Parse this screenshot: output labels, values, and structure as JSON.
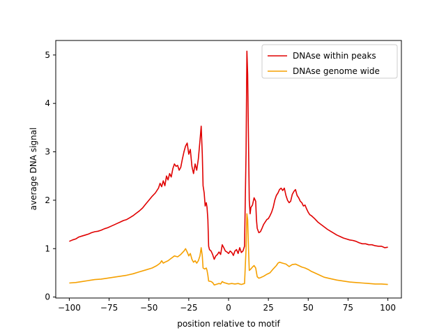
{
  "chart_data": {
    "type": "line",
    "xlabel": "position relative to motif",
    "ylabel": "average DNA signal",
    "xlim": [
      -108.5,
      108.5
    ],
    "ylim": [
      -0.02,
      5.3
    ],
    "xticks": [
      -100,
      -75,
      -50,
      -25,
      0,
      25,
      50,
      75,
      100
    ],
    "xtick_labels": [
      "−100",
      "−75",
      "−50",
      "−25",
      "0",
      "25",
      "50",
      "75",
      "100"
    ],
    "yticks": [
      0,
      1,
      2,
      3,
      4,
      5
    ],
    "ytick_labels": [
      "0",
      "1",
      "2",
      "3",
      "4",
      "5"
    ],
    "grid": false,
    "legend": "top-right",
    "series": [
      {
        "name": "DNAse within peaks",
        "color": "#e00000",
        "points": [
          [
            -100,
            1.15
          ],
          [
            -98,
            1.18
          ],
          [
            -96,
            1.2
          ],
          [
            -94,
            1.24
          ],
          [
            -92,
            1.26
          ],
          [
            -90,
            1.28
          ],
          [
            -88,
            1.3
          ],
          [
            -86,
            1.33
          ],
          [
            -84,
            1.35
          ],
          [
            -82,
            1.36
          ],
          [
            -80,
            1.38
          ],
          [
            -78,
            1.41
          ],
          [
            -76,
            1.43
          ],
          [
            -74,
            1.46
          ],
          [
            -72,
            1.49
          ],
          [
            -70,
            1.52
          ],
          [
            -68,
            1.55
          ],
          [
            -66,
            1.58
          ],
          [
            -64,
            1.6
          ],
          [
            -62,
            1.64
          ],
          [
            -60,
            1.68
          ],
          [
            -58,
            1.73
          ],
          [
            -56,
            1.78
          ],
          [
            -54,
            1.84
          ],
          [
            -52,
            1.92
          ],
          [
            -50,
            2.0
          ],
          [
            -48,
            2.08
          ],
          [
            -46,
            2.15
          ],
          [
            -44,
            2.25
          ],
          [
            -43,
            2.35
          ],
          [
            -42,
            2.28
          ],
          [
            -41,
            2.4
          ],
          [
            -40,
            2.3
          ],
          [
            -39,
            2.5
          ],
          [
            -38,
            2.42
          ],
          [
            -37,
            2.55
          ],
          [
            -36,
            2.48
          ],
          [
            -35,
            2.65
          ],
          [
            -34,
            2.75
          ],
          [
            -33,
            2.7
          ],
          [
            -32,
            2.72
          ],
          [
            -31,
            2.62
          ],
          [
            -30,
            2.68
          ],
          [
            -29,
            2.85
          ],
          [
            -28,
            3.0
          ],
          [
            -27,
            3.12
          ],
          [
            -26,
            3.18
          ],
          [
            -25,
            2.95
          ],
          [
            -24,
            3.05
          ],
          [
            -23,
            2.7
          ],
          [
            -22,
            2.55
          ],
          [
            -21,
            2.75
          ],
          [
            -20,
            2.62
          ],
          [
            -19,
            2.85
          ],
          [
            -18,
            3.22
          ],
          [
            -17.2,
            3.53
          ],
          [
            -16.5,
            2.95
          ],
          [
            -16,
            2.3
          ],
          [
            -15.3,
            2.15
          ],
          [
            -14.7,
            1.88
          ],
          [
            -14,
            1.95
          ],
          [
            -13.5,
            1.85
          ],
          [
            -13,
            1.6
          ],
          [
            -12.5,
            1.05
          ],
          [
            -12,
            0.98
          ],
          [
            -11,
            0.95
          ],
          [
            -10,
            0.88
          ],
          [
            -9,
            0.78
          ],
          [
            -8,
            0.85
          ],
          [
            -7,
            0.88
          ],
          [
            -6,
            0.93
          ],
          [
            -5,
            0.88
          ],
          [
            -4,
            1.08
          ],
          [
            -3,
            1.02
          ],
          [
            -2,
            0.95
          ],
          [
            -1,
            0.93
          ],
          [
            0,
            0.9
          ],
          [
            1,
            0.95
          ],
          [
            2,
            0.92
          ],
          [
            3,
            0.86
          ],
          [
            4,
            0.95
          ],
          [
            5,
            0.98
          ],
          [
            6,
            0.9
          ],
          [
            7,
            1.02
          ],
          [
            8,
            0.92
          ],
          [
            9,
            0.95
          ],
          [
            10,
            1.05
          ],
          [
            11,
            3.0
          ],
          [
            11.5,
            5.08
          ],
          [
            12,
            4.6
          ],
          [
            12.5,
            3.2
          ],
          [
            13,
            2.0
          ],
          [
            13.5,
            1.72
          ],
          [
            14,
            1.85
          ],
          [
            15,
            1.9
          ],
          [
            16,
            2.05
          ],
          [
            17,
            1.98
          ],
          [
            17.5,
            1.6
          ],
          [
            18,
            1.42
          ],
          [
            19,
            1.33
          ],
          [
            20,
            1.35
          ],
          [
            21,
            1.42
          ],
          [
            22,
            1.5
          ],
          [
            23,
            1.55
          ],
          [
            24,
            1.6
          ],
          [
            25,
            1.62
          ],
          [
            26,
            1.68
          ],
          [
            27,
            1.75
          ],
          [
            28,
            1.85
          ],
          [
            29,
            2.0
          ],
          [
            30,
            2.1
          ],
          [
            31,
            2.15
          ],
          [
            32,
            2.22
          ],
          [
            33,
            2.25
          ],
          [
            34,
            2.2
          ],
          [
            35,
            2.25
          ],
          [
            36,
            2.1
          ],
          [
            37,
            2.0
          ],
          [
            38,
            1.95
          ],
          [
            39,
            1.98
          ],
          [
            40,
            2.12
          ],
          [
            41,
            2.18
          ],
          [
            42,
            2.22
          ],
          [
            43,
            2.1
          ],
          [
            44,
            2.05
          ],
          [
            45,
            1.98
          ],
          [
            46,
            1.95
          ],
          [
            47,
            1.88
          ],
          [
            48,
            1.9
          ],
          [
            49,
            1.82
          ],
          [
            50,
            1.75
          ],
          [
            51,
            1.7
          ],
          [
            52,
            1.68
          ],
          [
            54,
            1.62
          ],
          [
            56,
            1.55
          ],
          [
            58,
            1.5
          ],
          [
            60,
            1.45
          ],
          [
            62,
            1.4
          ],
          [
            64,
            1.36
          ],
          [
            66,
            1.32
          ],
          [
            68,
            1.28
          ],
          [
            70,
            1.25
          ],
          [
            72,
            1.22
          ],
          [
            74,
            1.2
          ],
          [
            76,
            1.18
          ],
          [
            78,
            1.17
          ],
          [
            80,
            1.15
          ],
          [
            82,
            1.12
          ],
          [
            84,
            1.1
          ],
          [
            86,
            1.1
          ],
          [
            88,
            1.08
          ],
          [
            90,
            1.08
          ],
          [
            92,
            1.06
          ],
          [
            94,
            1.05
          ],
          [
            96,
            1.05
          ],
          [
            98,
            1.02
          ],
          [
            100,
            1.03
          ]
        ]
      },
      {
        "name": "DNAse genome wide",
        "color": "#f5a000",
        "points": [
          [
            -100,
            0.29
          ],
          [
            -96,
            0.3
          ],
          [
            -92,
            0.32
          ],
          [
            -88,
            0.34
          ],
          [
            -84,
            0.36
          ],
          [
            -80,
            0.37
          ],
          [
            -76,
            0.39
          ],
          [
            -72,
            0.41
          ],
          [
            -68,
            0.43
          ],
          [
            -64,
            0.45
          ],
          [
            -60,
            0.48
          ],
          [
            -56,
            0.52
          ],
          [
            -52,
            0.56
          ],
          [
            -48,
            0.6
          ],
          [
            -45,
            0.65
          ],
          [
            -43,
            0.7
          ],
          [
            -42,
            0.75
          ],
          [
            -41,
            0.7
          ],
          [
            -40,
            0.72
          ],
          [
            -38,
            0.75
          ],
          [
            -36,
            0.8
          ],
          [
            -34,
            0.85
          ],
          [
            -32,
            0.83
          ],
          [
            -30,
            0.88
          ],
          [
            -28,
            0.95
          ],
          [
            -27,
            1.0
          ],
          [
            -26,
            0.93
          ],
          [
            -25,
            0.85
          ],
          [
            -24,
            0.9
          ],
          [
            -23,
            0.78
          ],
          [
            -22,
            0.72
          ],
          [
            -21,
            0.75
          ],
          [
            -20,
            0.7
          ],
          [
            -19,
            0.75
          ],
          [
            -18,
            0.85
          ],
          [
            -17.2,
            1.02
          ],
          [
            -16.5,
            0.85
          ],
          [
            -16,
            0.6
          ],
          [
            -15,
            0.58
          ],
          [
            -14,
            0.6
          ],
          [
            -13.5,
            0.55
          ],
          [
            -13,
            0.45
          ],
          [
            -12.5,
            0.33
          ],
          [
            -11,
            0.32
          ],
          [
            -10,
            0.3
          ],
          [
            -9,
            0.25
          ],
          [
            -8,
            0.26
          ],
          [
            -7,
            0.27
          ],
          [
            -6,
            0.28
          ],
          [
            -5,
            0.27
          ],
          [
            -4,
            0.32
          ],
          [
            -3,
            0.3
          ],
          [
            -2,
            0.29
          ],
          [
            -1,
            0.28
          ],
          [
            0,
            0.27
          ],
          [
            2,
            0.28
          ],
          [
            4,
            0.27
          ],
          [
            6,
            0.28
          ],
          [
            8,
            0.26
          ],
          [
            10,
            0.28
          ],
          [
            11,
            1.0
          ],
          [
            11.5,
            1.72
          ],
          [
            12,
            1.6
          ],
          [
            12.5,
            1.0
          ],
          [
            13,
            0.55
          ],
          [
            14,
            0.58
          ],
          [
            15,
            0.62
          ],
          [
            16,
            0.65
          ],
          [
            17,
            0.6
          ],
          [
            18,
            0.42
          ],
          [
            19,
            0.39
          ],
          [
            20,
            0.4
          ],
          [
            22,
            0.43
          ],
          [
            24,
            0.47
          ],
          [
            26,
            0.5
          ],
          [
            28,
            0.58
          ],
          [
            30,
            0.65
          ],
          [
            31,
            0.7
          ],
          [
            32,
            0.72
          ],
          [
            34,
            0.7
          ],
          [
            36,
            0.68
          ],
          [
            38,
            0.63
          ],
          [
            40,
            0.67
          ],
          [
            42,
            0.68
          ],
          [
            44,
            0.65
          ],
          [
            46,
            0.62
          ],
          [
            48,
            0.6
          ],
          [
            50,
            0.57
          ],
          [
            52,
            0.53
          ],
          [
            54,
            0.5
          ],
          [
            56,
            0.47
          ],
          [
            58,
            0.44
          ],
          [
            60,
            0.41
          ],
          [
            64,
            0.38
          ],
          [
            68,
            0.35
          ],
          [
            72,
            0.33
          ],
          [
            76,
            0.31
          ],
          [
            80,
            0.3
          ],
          [
            84,
            0.29
          ],
          [
            88,
            0.28
          ],
          [
            92,
            0.27
          ],
          [
            96,
            0.27
          ],
          [
            100,
            0.26
          ]
        ]
      }
    ]
  }
}
